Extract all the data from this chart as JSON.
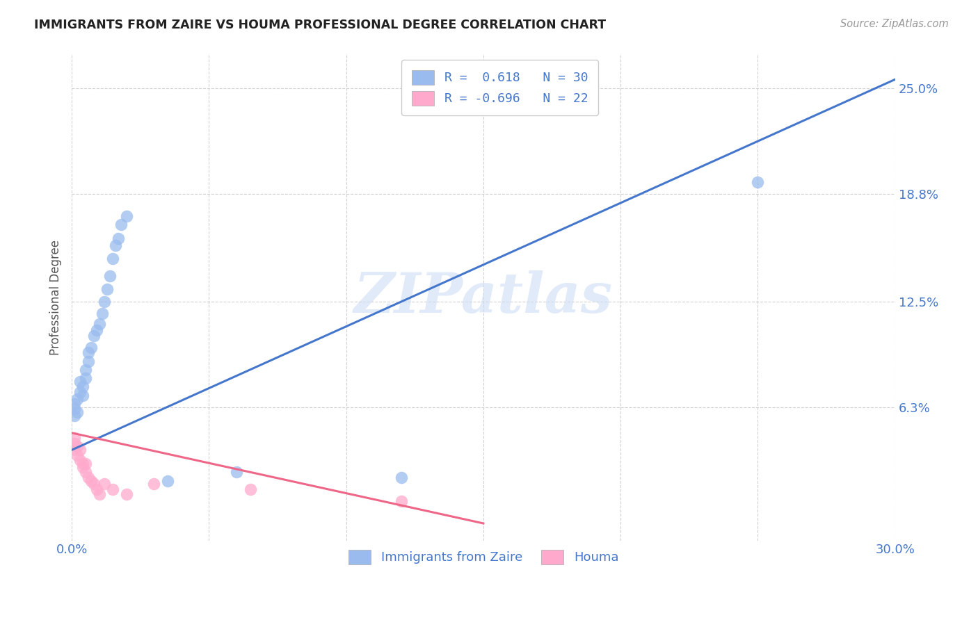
{
  "title": "IMMIGRANTS FROM ZAIRE VS HOUMA PROFESSIONAL DEGREE CORRELATION CHART",
  "source": "Source: ZipAtlas.com",
  "ylabel": "Professional Degree",
  "ytick_labels": [
    "6.3%",
    "12.5%",
    "18.8%",
    "25.0%"
  ],
  "ytick_values": [
    0.063,
    0.125,
    0.188,
    0.25
  ],
  "xlim": [
    0.0,
    0.3
  ],
  "ylim": [
    -0.015,
    0.27
  ],
  "blue_color": "#99BBEE",
  "pink_color": "#FFAACC",
  "blue_line_color": "#4477CC",
  "pink_line_color": "#EE6688",
  "legend_blue_label": "Immigrants from Zaire",
  "legend_pink_label": "Houma",
  "R_blue": 0.618,
  "N_blue": 30,
  "R_pink": -0.696,
  "N_pink": 22,
  "blue_line_x0": 0.0,
  "blue_line_y0": 0.038,
  "blue_line_x1": 0.3,
  "blue_line_y1": 0.255,
  "pink_line_x0": 0.0,
  "pink_line_y0": 0.048,
  "pink_line_x1": 0.15,
  "pink_line_y1": -0.005,
  "blue_x": [
    0.001,
    0.001,
    0.001,
    0.002,
    0.002,
    0.003,
    0.003,
    0.004,
    0.004,
    0.005,
    0.005,
    0.006,
    0.006,
    0.007,
    0.008,
    0.009,
    0.01,
    0.011,
    0.012,
    0.013,
    0.014,
    0.015,
    0.016,
    0.017,
    0.018,
    0.02,
    0.035,
    0.06,
    0.12,
    0.25
  ],
  "blue_y": [
    0.058,
    0.062,
    0.065,
    0.06,
    0.068,
    0.072,
    0.078,
    0.07,
    0.075,
    0.08,
    0.085,
    0.09,
    0.095,
    0.098,
    0.105,
    0.108,
    0.112,
    0.118,
    0.125,
    0.132,
    0.14,
    0.15,
    0.158,
    0.162,
    0.17,
    0.175,
    0.02,
    0.025,
    0.022,
    0.195
  ],
  "pink_x": [
    0.001,
    0.001,
    0.001,
    0.002,
    0.002,
    0.003,
    0.003,
    0.004,
    0.004,
    0.005,
    0.005,
    0.006,
    0.007,
    0.008,
    0.009,
    0.01,
    0.012,
    0.015,
    0.02,
    0.03,
    0.065,
    0.12
  ],
  "pink_y": [
    0.042,
    0.038,
    0.045,
    0.04,
    0.035,
    0.032,
    0.038,
    0.03,
    0.028,
    0.025,
    0.03,
    0.022,
    0.02,
    0.018,
    0.015,
    0.012,
    0.018,
    0.015,
    0.012,
    0.018,
    0.015,
    0.008
  ],
  "watermark": "ZIPatlas",
  "background_color": "#FFFFFF",
  "grid_color": "#CCCCCC"
}
